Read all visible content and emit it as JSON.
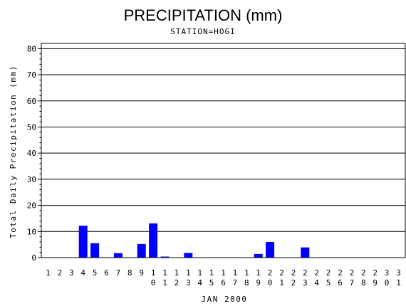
{
  "chart_data": {
    "type": "bar",
    "title": "PRECIPITATION (mm)",
    "subtitle": "STATION=HOGI",
    "xlabel": "JAN 2000",
    "ylabel": "Total Daily Precipitation (mm)",
    "ylim": [
      0,
      82
    ],
    "yticks": [
      0,
      10,
      20,
      30,
      40,
      50,
      60,
      70,
      80
    ],
    "grid": true,
    "categories": [
      "1",
      "2",
      "3",
      "4",
      "5",
      "6",
      "7",
      "8",
      "9",
      "10",
      "11",
      "12",
      "13",
      "14",
      "15",
      "16",
      "17",
      "18",
      "19",
      "20",
      "21",
      "22",
      "23",
      "24",
      "25",
      "26",
      "27",
      "28",
      "29",
      "30",
      "31"
    ],
    "values": [
      0,
      0,
      0,
      12.2,
      5.5,
      0,
      1.7,
      0,
      5.2,
      13.1,
      0.4,
      0,
      1.8,
      0,
      0,
      0,
      0,
      0,
      1.4,
      6.0,
      0,
      0,
      3.9,
      0,
      0,
      0,
      0,
      0,
      0,
      0,
      0
    ],
    "bar_color": "#0000ff"
  }
}
